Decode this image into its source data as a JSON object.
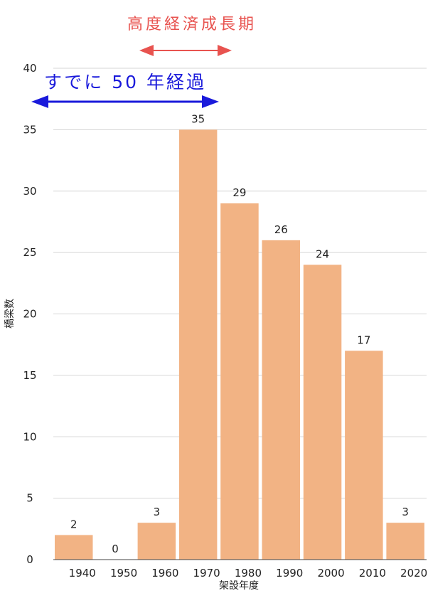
{
  "chart_data": {
    "type": "bar",
    "categories": [
      "1940",
      "1950",
      "1960",
      "1970",
      "1980",
      "1990",
      "2000",
      "2010",
      "2020"
    ],
    "values": [
      2,
      0,
      3,
      35,
      29,
      26,
      24,
      17,
      3
    ],
    "xlabel": "架設年度",
    "ylabel": "橋梁数",
    "ylim": [
      0,
      40
    ],
    "yticks": [
      0,
      5,
      10,
      15,
      20,
      25,
      30,
      35,
      40
    ],
    "grid": true,
    "bar_color": "#f2b384"
  },
  "annotations": {
    "high_growth": {
      "text": "高度経済成長期",
      "color": "#e8534f"
    },
    "over_50_years": {
      "text": "すでに 50 年経過",
      "color": "#1a1adb"
    }
  }
}
